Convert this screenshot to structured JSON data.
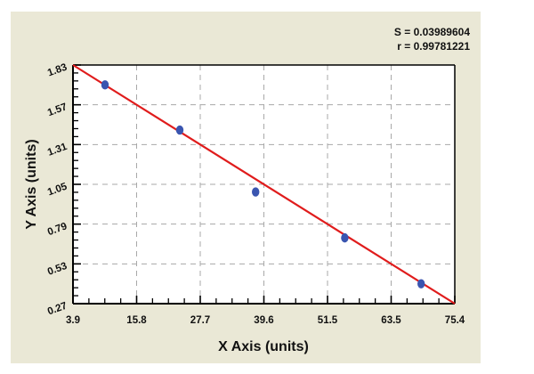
{
  "stats": {
    "s_label": "S = 0.03989604",
    "r_label": "r = 0.99781221"
  },
  "chart_data": {
    "type": "scatter",
    "title": "",
    "xlabel": "X Axis (units)",
    "ylabel": "Y Axis (units)",
    "xlim": [
      3.9,
      75.4
    ],
    "ylim": [
      0.27,
      1.83
    ],
    "x_ticks": [
      "3.9",
      "15.8",
      "27.7",
      "39.6",
      "51.5",
      "63.5",
      "75.4"
    ],
    "y_ticks": [
      "0.27",
      "0.53",
      "0.79",
      "1.05",
      "1.31",
      "1.57",
      "1.83"
    ],
    "grid": true,
    "grid_style": "dashed",
    "series": [
      {
        "name": "data points",
        "color": "#3a55b0",
        "x": [
          9.9,
          23.9,
          38.1,
          54.8,
          69.1
        ],
        "y": [
          1.7,
          1.405,
          1.0,
          0.7,
          0.4
        ]
      }
    ],
    "fit_line": {
      "color": "#e01c1c",
      "x": [
        3.9,
        75.4
      ],
      "y": [
        1.83,
        0.27
      ]
    },
    "statistics": {
      "S": 0.03989604,
      "r": 0.99781221
    },
    "legend": "none"
  },
  "colors": {
    "panel_bg": "#eae8d6",
    "plot_bg": "#ffffff",
    "grid": "#a8a8a8",
    "point": "#3a55b0",
    "fit": "#e01c1c"
  }
}
